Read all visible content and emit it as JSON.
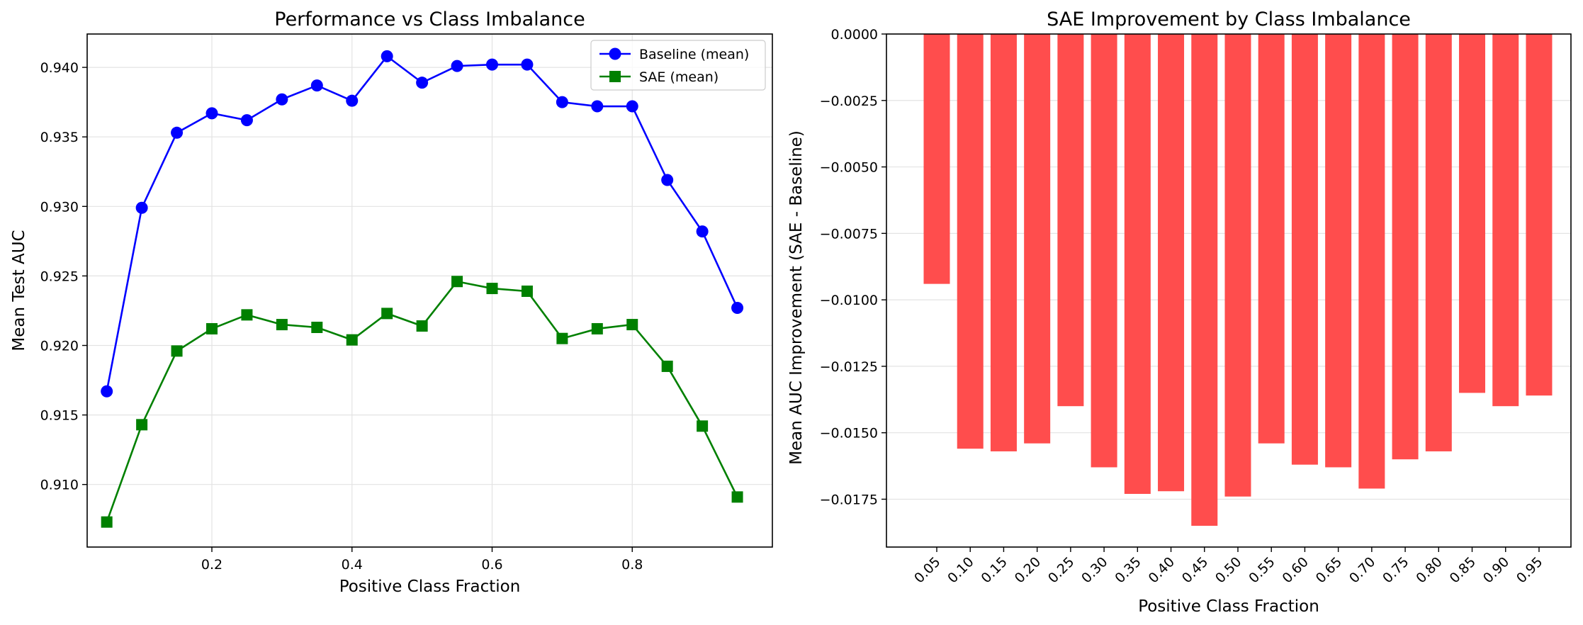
{
  "chart_data": [
    {
      "type": "line",
      "title": "Performance vs Class Imbalance",
      "xlabel": "Positive Class Fraction",
      "ylabel": "Mean Test AUC",
      "xlim": [
        0.022,
        1.0
      ],
      "ylim": [
        0.9055,
        0.9424
      ],
      "xticks": [
        0.2,
        0.4,
        0.6,
        0.8
      ],
      "xtick_labels": [
        "0.2",
        "0.4",
        "0.6",
        "0.8"
      ],
      "yticks": [
        0.91,
        0.915,
        0.92,
        0.925,
        0.93,
        0.935,
        0.94
      ],
      "ytick_labels": [
        "0.910",
        "0.915",
        "0.920",
        "0.925",
        "0.930",
        "0.935",
        "0.940"
      ],
      "grid": true,
      "legend_position": "top-right",
      "x": [
        0.05,
        0.1,
        0.15,
        0.2,
        0.25,
        0.3,
        0.35,
        0.4,
        0.45,
        0.5,
        0.55,
        0.6,
        0.65,
        0.7,
        0.75,
        0.8,
        0.85,
        0.9,
        0.95
      ],
      "series": [
        {
          "name": "Baseline (mean)",
          "color": "#0000ff",
          "marker": "circle",
          "values": [
            0.9167,
            0.9299,
            0.9353,
            0.9367,
            0.9362,
            0.9377,
            0.9387,
            0.9376,
            0.9408,
            0.9389,
            0.9401,
            0.9402,
            0.9402,
            0.9375,
            0.9372,
            0.9372,
            0.9319,
            0.9282,
            0.9227
          ]
        },
        {
          "name": "SAE (mean)",
          "color": "#008000",
          "marker": "square",
          "values": [
            0.9073,
            0.9143,
            0.9196,
            0.9212,
            0.9222,
            0.9215,
            0.9213,
            0.9204,
            0.9223,
            0.9214,
            0.9246,
            0.9241,
            0.9239,
            0.9205,
            0.9212,
            0.9215,
            0.9185,
            0.9142,
            0.9091
          ]
        }
      ]
    },
    {
      "type": "bar",
      "title": "SAE Improvement by Class Imbalance",
      "xlabel": "Positive Class Fraction",
      "ylabel": "Mean AUC Improvement (SAE - Baseline)",
      "ylim": [
        -0.0193,
        0.0
      ],
      "yticks": [
        0.0,
        -0.0025,
        -0.005,
        -0.0075,
        -0.01,
        -0.0125,
        -0.015,
        -0.0175
      ],
      "ytick_labels": [
        "0.0000",
        "−0.0025",
        "−0.0050",
        "−0.0075",
        "−0.0100",
        "−0.0125",
        "−0.0150",
        "−0.0175"
      ],
      "grid": true,
      "bar_color": "#ff4d4d",
      "categories": [
        "0.05",
        "0.10",
        "0.15",
        "0.20",
        "0.25",
        "0.30",
        "0.35",
        "0.40",
        "0.45",
        "0.50",
        "0.55",
        "0.60",
        "0.65",
        "0.70",
        "0.75",
        "0.80",
        "0.85",
        "0.90",
        "0.95"
      ],
      "values": [
        -0.0094,
        -0.0156,
        -0.0157,
        -0.0154,
        -0.014,
        -0.0163,
        -0.0173,
        -0.0172,
        -0.0185,
        -0.0174,
        -0.0154,
        -0.0162,
        -0.0163,
        -0.0171,
        -0.016,
        -0.0157,
        -0.0135,
        -0.014,
        -0.0136
      ]
    }
  ]
}
